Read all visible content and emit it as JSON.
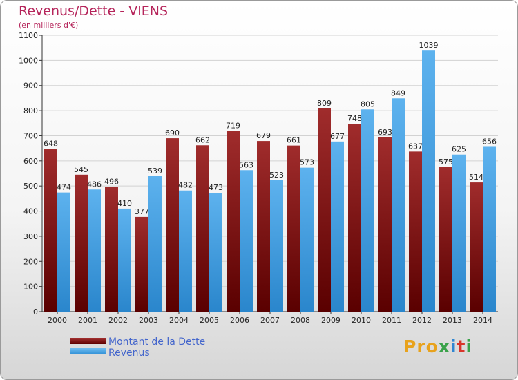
{
  "chart_data": {
    "type": "bar",
    "title": "Revenus/Dette - VIENS",
    "subtitle": "(en milliers d'€)",
    "categories": [
      "2000",
      "2001",
      "2002",
      "2003",
      "2004",
      "2005",
      "2006",
      "2007",
      "2008",
      "2009",
      "2010",
      "2011",
      "2012",
      "2013",
      "2014"
    ],
    "series": [
      {
        "name": "Montant de la Dette",
        "color": "#7a1a1a",
        "values": [
          648,
          545,
          496,
          377,
          690,
          662,
          719,
          679,
          661,
          809,
          748,
          693,
          637,
          575,
          514
        ]
      },
      {
        "name": "Revenus",
        "color": "#3f9be0",
        "values": [
          474,
          486,
          410,
          539,
          482,
          473,
          563,
          523,
          573,
          677,
          805,
          849,
          1039,
          625,
          656
        ]
      }
    ],
    "ylim": [
      0,
      1100
    ],
    "yticks": [
      0,
      100,
      200,
      300,
      400,
      500,
      600,
      700,
      800,
      900,
      1000,
      1100
    ],
    "grid": true,
    "legend_position": "bottom-left"
  },
  "legend": {
    "dette_label": "Montant de la Dette",
    "revenus_label": "Revenus"
  },
  "logo": {
    "p1": "Pro",
    "p2": "x",
    "p3": "i",
    "p4": "t",
    "p5": "i"
  }
}
